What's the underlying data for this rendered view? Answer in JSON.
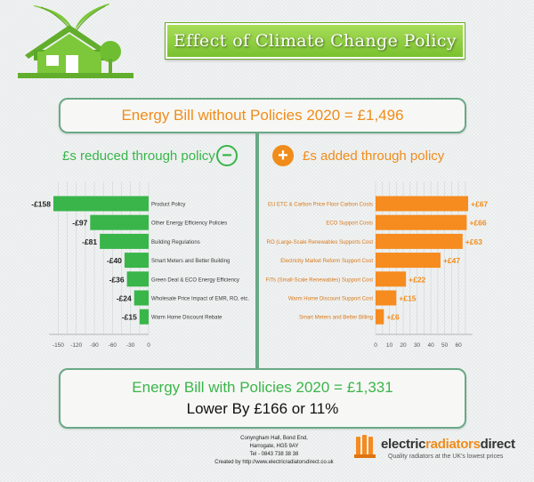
{
  "header": {
    "title": "Effect of Climate Change Policy",
    "icons": [
      "leaf-icon",
      "house-icon",
      "tree-icon"
    ]
  },
  "top_box": {
    "text": "Energy Bill without Policies 2020 = £1,496"
  },
  "left_section": {
    "heading": "£s reduced through policy",
    "icon": "minus-circle-icon"
  },
  "right_section": {
    "heading": "£s added through policy",
    "icon": "plus-circle-icon"
  },
  "bottom_box": {
    "title": "Energy Bill with Policies 2020 = £1,331",
    "subtitle": "Lower By £166 or 11%"
  },
  "footer": {
    "address_line1": "Conyngham Hall, Bond End,",
    "address_line2": "Harrogate, HG5 9AY",
    "phone": "Tel - 0843 738 38 38",
    "created_by": "Created by  http://www.electricradiatorsdirect.co.uk",
    "brand_part1": "electric",
    "brand_part2": "radiators",
    "brand_part3": "direct",
    "tagline": "Quality radiators at the UK's lowest prices"
  },
  "colors": {
    "green_bar": "#39b54a",
    "orange_bar": "#f68b1f",
    "heading_green": "#39b54a",
    "heading_orange": "#f08c1b",
    "border": "#6aa987"
  },
  "chart_data": [
    {
      "type": "bar",
      "orientation": "horizontal",
      "categories": [
        "Product Policy",
        "Other Energy Efficiency Policies",
        "Building Regulations",
        "Smart Meters and Better Building",
        "Green Deal & ECO Energy Efficiency",
        "Wholesale Price Impact of EMR, RO, etc.",
        "Warm Home Discount Rebate"
      ],
      "values": [
        -158,
        -97,
        -81,
        -40,
        -36,
        -24,
        -15
      ],
      "value_labels": [
        "-£158",
        "-£97",
        "-£81",
        "-£40",
        "-£36",
        "-£24",
        "-£15"
      ],
      "xticks": [
        "-150",
        "-120",
        "-90",
        "-60",
        "-30",
        "0"
      ],
      "xlim": [
        -165,
        0
      ],
      "grid": true
    },
    {
      "type": "bar",
      "orientation": "horizontal",
      "categories": [
        "EU ETC & Carbon Price Floor Carbon Costs",
        "ECO Support Costs",
        "RO (Large-Scale Renewables Supports Cost",
        "Electricity Market Reform Support Cost",
        "FITs (Small-Scale Renewables) Support Cost",
        "Warm Home Discount Support Cost",
        "Smart Meters and Better Billing"
      ],
      "values": [
        67,
        66,
        63,
        47,
        22,
        15,
        6
      ],
      "value_labels": [
        "+£67",
        "+£66",
        "+£63",
        "+£47",
        "+£22",
        "+£15",
        "+£6"
      ],
      "xticks": [
        "0",
        "10",
        "20",
        "30",
        "40",
        "50",
        "60"
      ],
      "xlim": [
        0,
        70
      ],
      "grid": true
    }
  ]
}
